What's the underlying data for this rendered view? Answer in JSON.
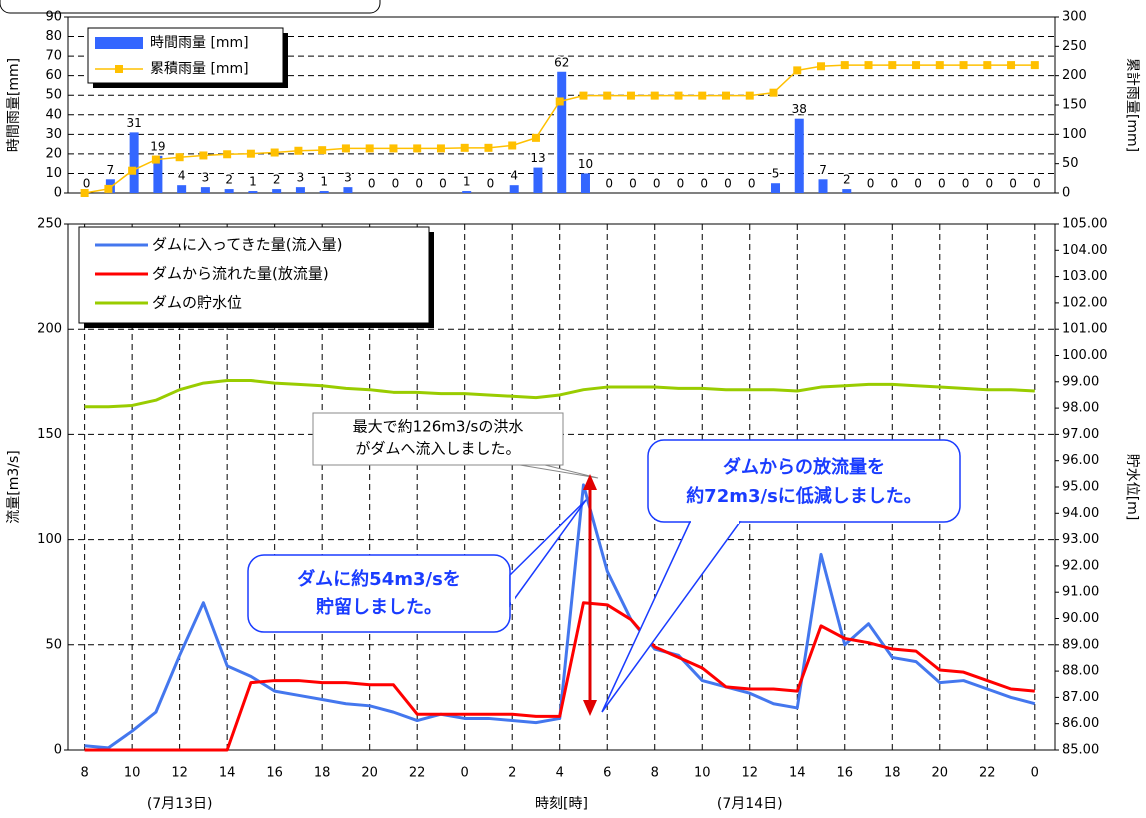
{
  "chart_data": [
    {
      "type": "combo",
      "ylabel": "時間雨量[mm]",
      "y2label": "累計雨量[mm]",
      "x": [
        0,
        1,
        2,
        3,
        4,
        5,
        6,
        7,
        8,
        9,
        10,
        11,
        12,
        13,
        14,
        15,
        16,
        17,
        18,
        19,
        20,
        21,
        22,
        23,
        24,
        25,
        26,
        27,
        28,
        29,
        30,
        31,
        32,
        33,
        34,
        35,
        36,
        37,
        38,
        39,
        40
      ],
      "xlim": [
        -0.7,
        40.85
      ],
      "ylim": [
        0,
        90
      ],
      "yticks": [
        0,
        10,
        20,
        30,
        40,
        50,
        60,
        70,
        80,
        90
      ],
      "y2lim": [
        0,
        300
      ],
      "y2ticks": [
        0,
        50,
        100,
        150,
        200,
        250,
        300
      ],
      "grid": true,
      "legend": "upper left",
      "series": [
        {
          "name": "時間雨量 [mm]",
          "type": "bar",
          "color": "#3366ff",
          "values": [
            0,
            7,
            31,
            19,
            4,
            3,
            2,
            1,
            2,
            3,
            1,
            3,
            0,
            0,
            0,
            0,
            1,
            0,
            4,
            13,
            62,
            10,
            0,
            0,
            0,
            0,
            0,
            0,
            0,
            5,
            38,
            7,
            2,
            0,
            0,
            0,
            0,
            0,
            0,
            0,
            0
          ]
        },
        {
          "name": "累積雨量 [mm]",
          "type": "line",
          "axis": "y2",
          "color": "#ffc000",
          "values": [
            0,
            7,
            38,
            57,
            61,
            64,
            66,
            67,
            69,
            72,
            73,
            76,
            76,
            76,
            76,
            76,
            77,
            77,
            81,
            94,
            156,
            166,
            166,
            166,
            166,
            166,
            166,
            166,
            166,
            171,
            209,
            216,
            218,
            218,
            218,
            218,
            218,
            218,
            218,
            218,
            218
          ]
        }
      ]
    },
    {
      "type": "line",
      "xlabel": "時刻[時]",
      "ylabel": "流量[m3/s]",
      "y2label": "貯水位[m]",
      "x": [
        0,
        1,
        2,
        3,
        4,
        5,
        6,
        7,
        8,
        9,
        10,
        11,
        12,
        13,
        14,
        15,
        16,
        17,
        18,
        19,
        20,
        21,
        22,
        23,
        24,
        25,
        26,
        27,
        28,
        29,
        30,
        31,
        32,
        33,
        34,
        35,
        36,
        37,
        38,
        39,
        40
      ],
      "xlim": [
        -0.7,
        40.85
      ],
      "xticks": [
        {
          "value": 0,
          "label": "8"
        },
        {
          "value": 2,
          "label": "10"
        },
        {
          "value": 4,
          "label": "12"
        },
        {
          "value": 6,
          "label": "14"
        },
        {
          "value": 8,
          "label": "16"
        },
        {
          "value": 10,
          "label": "18"
        },
        {
          "value": 12,
          "label": "20"
        },
        {
          "value": 14,
          "label": "22"
        },
        {
          "value": 16,
          "label": "0"
        },
        {
          "value": 18,
          "label": "2"
        },
        {
          "value": 20,
          "label": "4"
        },
        {
          "value": 22,
          "label": "6"
        },
        {
          "value": 24,
          "label": "8"
        },
        {
          "value": 26,
          "label": "10"
        },
        {
          "value": 28,
          "label": "12"
        },
        {
          "value": 30,
          "label": "14"
        },
        {
          "value": 32,
          "label": "16"
        },
        {
          "value": 34,
          "label": "18"
        },
        {
          "value": 36,
          "label": "20"
        },
        {
          "value": 38,
          "label": "22"
        },
        {
          "value": 40,
          "label": "0"
        }
      ],
      "date_labels": [
        {
          "at": 4,
          "label": "(7月13日)"
        },
        {
          "at": 28,
          "label": "(7月14日)"
        }
      ],
      "ylim": [
        0,
        250
      ],
      "yticks": [
        0,
        50,
        100,
        150,
        200,
        250
      ],
      "y2lim": [
        85,
        105
      ],
      "y2ticks": [
        {
          "value": 85,
          "label": "85.00"
        },
        {
          "value": 86,
          "label": "86.00"
        },
        {
          "value": 87,
          "label": "87.00"
        },
        {
          "value": 88,
          "label": "88.00"
        },
        {
          "value": 89,
          "label": "89.00"
        },
        {
          "value": 90,
          "label": "90.00"
        },
        {
          "value": 91,
          "label": "91.00"
        },
        {
          "value": 92,
          "label": "92.00"
        },
        {
          "value": 93,
          "label": "93.00"
        },
        {
          "value": 94,
          "label": "94.00"
        },
        {
          "value": 95,
          "label": "95.00"
        },
        {
          "value": 96,
          "label": "96.00"
        },
        {
          "value": 97,
          "label": "97.00"
        },
        {
          "value": 98,
          "label": "98.00"
        },
        {
          "value": 99,
          "label": "99.00"
        },
        {
          "value": 100,
          "label": "100.00"
        },
        {
          "value": 101,
          "label": "101.00"
        },
        {
          "value": 102,
          "label": "102.00"
        },
        {
          "value": 103,
          "label": "103.00"
        },
        {
          "value": 104,
          "label": "104.00"
        },
        {
          "value": 105,
          "label": "105.00"
        }
      ],
      "grid": true,
      "legend": "upper left",
      "series": [
        {
          "name": "ダムに入ってきた量(流入量)",
          "color": "#4477ee",
          "values": [
            2,
            1,
            9,
            18,
            45,
            70,
            40,
            35,
            28,
            26,
            24,
            22,
            21,
            18,
            14,
            17,
            15,
            15,
            14,
            13,
            15,
            126,
            85,
            62,
            48,
            45,
            33,
            30,
            27,
            22,
            20,
            93,
            50,
            60,
            44,
            42,
            32,
            33,
            29,
            25,
            22
          ]
        },
        {
          "name": "ダムから流れた量(放流量)",
          "color": "#ff0000",
          "values": [
            0,
            0,
            0,
            0,
            0,
            0,
            0,
            32,
            33,
            33,
            32,
            32,
            31,
            31,
            17,
            17,
            17,
            17,
            17,
            16,
            16,
            70,
            69,
            62,
            49,
            44,
            39,
            30,
            29,
            29,
            28,
            59,
            53,
            51,
            48,
            47,
            38,
            37,
            33,
            29,
            28
          ]
        },
        {
          "name": "ダムの貯水位",
          "axis": "y2",
          "color": "#99cc00",
          "values": [
            98.05,
            98.05,
            98.1,
            98.3,
            98.7,
            98.95,
            99.05,
            99.05,
            98.95,
            98.9,
            98.85,
            98.75,
            98.7,
            98.6,
            98.6,
            98.55,
            98.55,
            98.5,
            98.45,
            98.4,
            98.5,
            98.7,
            98.8,
            98.8,
            98.8,
            98.75,
            98.75,
            98.7,
            98.7,
            98.7,
            98.65,
            98.8,
            98.85,
            98.9,
            98.9,
            98.85,
            98.8,
            98.75,
            98.7,
            98.7,
            98.65
          ]
        }
      ],
      "annotations": [
        {
          "lines": [
            "最大で約126m3/sの洪水",
            "がダムへ流入しました。"
          ]
        },
        {
          "lines": [
            "ダムからの放流量を",
            "約72m3/sに低減しました。"
          ]
        },
        {
          "lines": [
            "ダムに約54m3/sを",
            "貯留しました。"
          ]
        }
      ]
    }
  ]
}
